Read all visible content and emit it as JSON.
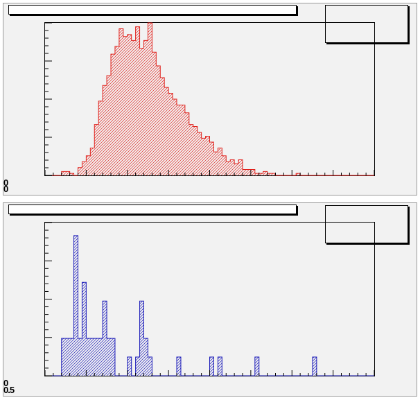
{
  "chart_data": [
    {
      "type": "bar",
      "title": "",
      "xlabel": "",
      "ylabel": "",
      "fill_style": "diagonal-hatch",
      "colors": {
        "line": "#e0201b",
        "hatch": "#e0201b",
        "pad": "#f2f2f2"
      },
      "y_tick_labels": [
        "0",
        "0"
      ],
      "nbins": 80,
      "ylim": [
        0,
        78
      ],
      "values": [
        0,
        0,
        0,
        0,
        2,
        2,
        1,
        0,
        4,
        7,
        10,
        14,
        26,
        38,
        46,
        51,
        62,
        66,
        75,
        71,
        72,
        69,
        76,
        65,
        69,
        78,
        63,
        56,
        50,
        45,
        42,
        39,
        36,
        36,
        32,
        26,
        25,
        22,
        19,
        20,
        17,
        12,
        14,
        10,
        7,
        8,
        6,
        8,
        3,
        3,
        3,
        1,
        1,
        2,
        1,
        1,
        0,
        0,
        0,
        0,
        0,
        1,
        0,
        0,
        0,
        0,
        0,
        0,
        0,
        0,
        0,
        0,
        0,
        0,
        0,
        0,
        0,
        0,
        0,
        0
      ]
    },
    {
      "type": "bar",
      "title": "",
      "xlabel": "",
      "ylabel": "",
      "fill_style": "diagonal-hatch",
      "colors": {
        "line": "#1a1ab8",
        "hatch": "#1a1ab8",
        "pad": "#f2f2f2"
      },
      "y_tick_labels": [
        "0",
        "0.5"
      ],
      "nbins": 80,
      "ylim": [
        0,
        8.2
      ],
      "values": [
        0,
        0,
        0,
        0,
        2,
        2,
        2,
        7.5,
        2,
        5,
        2,
        2,
        2,
        2,
        4,
        2,
        2,
        0,
        0,
        0,
        1,
        0,
        1,
        4,
        2,
        1,
        0,
        0,
        0,
        0,
        0,
        0,
        1,
        0,
        0,
        0,
        0,
        0,
        0,
        0,
        1,
        0,
        1,
        0,
        0,
        0,
        0,
        0,
        0,
        0,
        0,
        1,
        0,
        0,
        0,
        0,
        0,
        0,
        0,
        0,
        0,
        0,
        0,
        0,
        0,
        1,
        0,
        0,
        0,
        0,
        0,
        0,
        0,
        0,
        0,
        0,
        0,
        0,
        0,
        0
      ]
    }
  ]
}
